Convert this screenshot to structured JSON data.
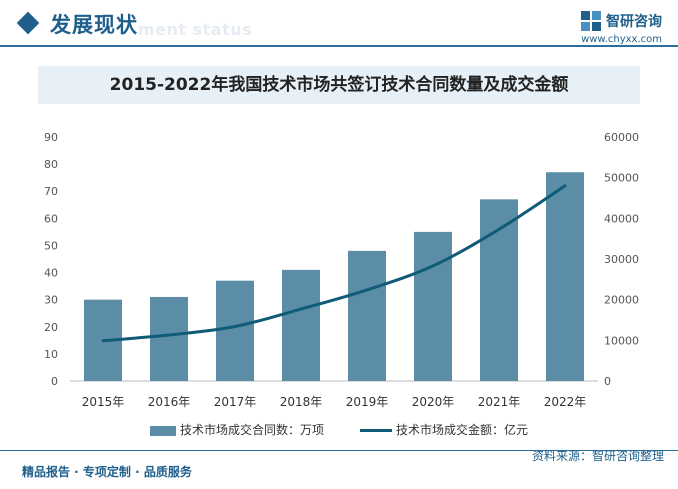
{
  "header": {
    "title": "发展现状",
    "subtitle": "ment status",
    "brand_name": "智研咨询",
    "brand_url": "www.chyxx.com"
  },
  "chart_data": {
    "type": "bar",
    "title": "2015-2022年我国技术市场共签订技术合同数量及成交金额",
    "categories": [
      "2015年",
      "2016年",
      "2017年",
      "2018年",
      "2019年",
      "2020年",
      "2021年",
      "2022年"
    ],
    "series": [
      {
        "name": "技术市场成交合同数：万项",
        "type": "bar",
        "axis": "left",
        "values": [
          30,
          31,
          37,
          41,
          48,
          55,
          67,
          77
        ],
        "color": "#5b8ea6"
      },
      {
        "name": "技术市场成交金额：亿元",
        "type": "line",
        "axis": "right",
        "values": [
          9900,
          11300,
          13400,
          17700,
          22400,
          28300,
          37300,
          48000
        ],
        "color": "#0f5b78"
      }
    ],
    "y_left": {
      "min": 0,
      "max": 90,
      "ticks": [
        0,
        10,
        20,
        30,
        40,
        50,
        60,
        70,
        80,
        90
      ]
    },
    "y_right": {
      "min": 0,
      "max": 60000,
      "ticks": [
        0,
        10000,
        20000,
        30000,
        40000,
        50000,
        60000
      ]
    },
    "grid": false,
    "legend_position": "bottom"
  },
  "legend": {
    "bar_label": "技术市场成交合同数：万项",
    "line_label": "技术市场成交金额：亿元"
  },
  "footer": {
    "source": "资料来源：智研咨询整理",
    "left_text": "精品报告 · 专项定制 · 品质服务"
  }
}
